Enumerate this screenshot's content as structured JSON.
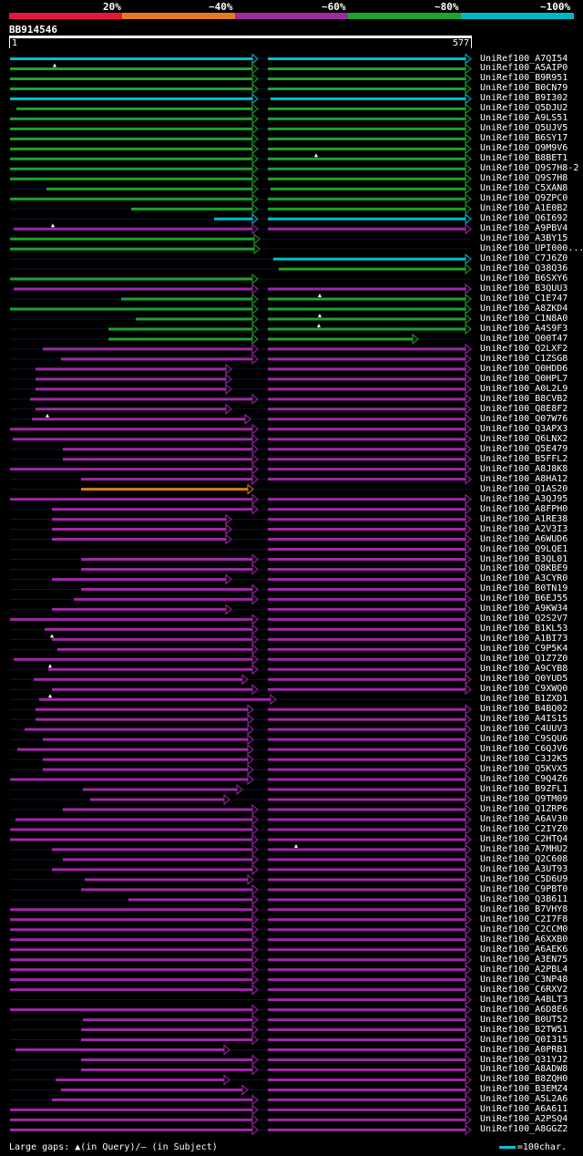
{
  "legend": {
    "labels": [
      "20%",
      "~40%",
      "~60%",
      "~80%",
      "~100%"
    ],
    "colors": [
      "#e8163a",
      "#e87a1e",
      "#9e2a9e",
      "#1fa32e",
      "#00b8c8"
    ]
  },
  "query": {
    "id": "BB914546",
    "start": "1",
    "end": "577"
  },
  "footer": {
    "gaps_text": "Large gaps: ▲(in Query)/– (in Subject)",
    "scale_text": "=100char."
  },
  "hits": [
    {
      "label": "UniRef100_A7QI54",
      "color": "cyan",
      "s1": 11,
      "e1": 283,
      "s2": 294,
      "e2": 517,
      "gap": 0
    },
    {
      "label": "UniRef100_A5AIP0",
      "color": "green",
      "s1": 11,
      "e1": 283,
      "s2": 294,
      "e2": 517,
      "gap": 60
    },
    {
      "label": "UniRef100_B9R951",
      "color": "green",
      "s1": 11,
      "e1": 283,
      "s2": 294,
      "e2": 517,
      "gap": 0
    },
    {
      "label": "UniRef100_B0CN79",
      "color": "green",
      "s1": 11,
      "e1": 283,
      "s2": 294,
      "e2": 517,
      "gap": 0
    },
    {
      "label": "UniRef100_B9I302",
      "color": "cyan",
      "s1": 11,
      "e1": 283,
      "s2": 297,
      "e2": 517,
      "gap": 0
    },
    {
      "label": "UniRef100_Q5DJU2",
      "color": "green",
      "s1": 18,
      "e1": 283,
      "s2": 294,
      "e2": 517,
      "gap": 0
    },
    {
      "label": "UniRef100_A9LS51",
      "color": "green",
      "s1": 11,
      "e1": 283,
      "s2": 294,
      "e2": 517,
      "gap": 0
    },
    {
      "label": "UniRef100_Q5UJV5",
      "color": "green",
      "s1": 11,
      "e1": 283,
      "s2": 294,
      "e2": 517,
      "gap": 0
    },
    {
      "label": "UniRef100_B6SY17",
      "color": "green",
      "s1": 11,
      "e1": 283,
      "s2": 294,
      "e2": 517,
      "gap": 0
    },
    {
      "label": "UniRef100_Q9M9V6",
      "color": "green",
      "s1": 11,
      "e1": 283,
      "s2": 294,
      "e2": 517,
      "gap": 0
    },
    {
      "label": "UniRef100_B8BET1",
      "color": "green",
      "s1": 11,
      "e1": 283,
      "s2": 294,
      "e2": 517,
      "gap": 347
    },
    {
      "label": "UniRef100_Q9S7H8-2",
      "color": "green",
      "s1": 11,
      "e1": 283,
      "s2": 294,
      "e2": 517,
      "gap": 0
    },
    {
      "label": "UniRef100_Q9S7H8",
      "color": "green",
      "s1": 11,
      "e1": 283,
      "s2": 294,
      "e2": 517,
      "gap": 0
    },
    {
      "label": "UniRef100_C5XAN8",
      "color": "green",
      "s1": 51,
      "e1": 283,
      "s2": 297,
      "e2": 517,
      "gap": 0
    },
    {
      "label": "UniRef100_Q9ZPC0",
      "color": "green",
      "s1": 11,
      "e1": 283,
      "s2": 294,
      "e2": 517,
      "gap": 0
    },
    {
      "label": "UniRef100_A1E0B2",
      "color": "green",
      "s1": 144,
      "e1": 283,
      "s2": 294,
      "e2": 517,
      "gap": 0
    },
    {
      "label": "UniRef100_Q6I692",
      "color": "cyan",
      "s1": 235,
      "e1": 283,
      "s2": 294,
      "e2": 517,
      "gap": 0
    },
    {
      "label": "UniRef100_A9PBV4",
      "color": "purple",
      "s1": 15,
      "e1": 283,
      "s2": 294,
      "e2": 517,
      "gap": 58
    },
    {
      "label": "UniRef100_A3BY15",
      "color": "green",
      "s1": 11,
      "e1": 285,
      "s2": 0,
      "e2": 0,
      "gap": 0
    },
    {
      "label": "UniRef100_UPI000...",
      "color": "green",
      "s1": 11,
      "e1": 285,
      "s2": 0,
      "e2": 0,
      "gap": 0
    },
    {
      "label": "UniRef100_C7J6Z0",
      "color": "cyan",
      "s1": 0,
      "e1": 0,
      "s2": 300,
      "e2": 517,
      "gap": 0
    },
    {
      "label": "UniRef100_Q38Q36",
      "color": "green",
      "s1": 0,
      "e1": 0,
      "s2": 306,
      "e2": 517,
      "gap": 0
    },
    {
      "label": "UniRef100_B6SXY6",
      "color": "green",
      "s1": 11,
      "e1": 283,
      "s2": 0,
      "e2": 0,
      "gap": 0
    },
    {
      "label": "UniRef100_B3QUU3",
      "color": "purple",
      "s1": 15,
      "e1": 283,
      "s2": 294,
      "e2": 517,
      "gap": 0
    },
    {
      "label": "UniRef100_C1E747",
      "color": "green",
      "s1": 133,
      "e1": 283,
      "s2": 294,
      "e2": 517,
      "gap": 351
    },
    {
      "label": "UniRef100_A8ZKD4",
      "color": "green",
      "s1": 11,
      "e1": 283,
      "s2": 294,
      "e2": 517,
      "gap": 0
    },
    {
      "label": "UniRef100_C1N8A0",
      "color": "green",
      "s1": 149,
      "e1": 283,
      "s2": 294,
      "e2": 517,
      "gap": 351
    },
    {
      "label": "UniRef100_A4S9F3",
      "color": "green",
      "s1": 119,
      "e1": 283,
      "s2": 294,
      "e2": 517,
      "gap": 350
    },
    {
      "label": "UniRef100_Q00T47",
      "color": "green",
      "s1": 119,
      "e1": 283,
      "s2": 294,
      "e2": 459,
      "gap": 0
    },
    {
      "label": "UniRef100_Q2LXF2",
      "color": "purple",
      "s1": 47,
      "e1": 283,
      "s2": 294,
      "e2": 517,
      "gap": 0
    },
    {
      "label": "UniRef100_C1ZSG8",
      "color": "purple",
      "s1": 67,
      "e1": 283,
      "s2": 294,
      "e2": 517,
      "gap": 0
    },
    {
      "label": "UniRef100_Q0HDD6",
      "color": "purple",
      "s1": 39,
      "e1": 254,
      "s2": 294,
      "e2": 517,
      "gap": 0
    },
    {
      "label": "UniRef100_Q0HPL7",
      "color": "purple",
      "s1": 39,
      "e1": 254,
      "s2": 294,
      "e2": 517,
      "gap": 0
    },
    {
      "label": "UniRef100_A0L2L9",
      "color": "purple",
      "s1": 39,
      "e1": 254,
      "s2": 294,
      "e2": 517,
      "gap": 0
    },
    {
      "label": "UniRef100_B8CVB2",
      "color": "purple",
      "s1": 33,
      "e1": 283,
      "s2": 294,
      "e2": 517,
      "gap": 0
    },
    {
      "label": "UniRef100_Q8E8F2",
      "color": "purple",
      "s1": 39,
      "e1": 254,
      "s2": 294,
      "e2": 517,
      "gap": 0
    },
    {
      "label": "UniRef100_Q07W76",
      "color": "purple",
      "s1": 35,
      "e1": 275,
      "s2": 294,
      "e2": 517,
      "gap": 52
    },
    {
      "label": "UniRef100_Q3APX3",
      "color": "purple",
      "s1": 11,
      "e1": 283,
      "s2": 294,
      "e2": 517,
      "gap": 0
    },
    {
      "label": "UniRef100_Q6LNX2",
      "color": "purple",
      "s1": 14,
      "e1": 283,
      "s2": 294,
      "e2": 517,
      "gap": 0
    },
    {
      "label": "UniRef100_Q5E479",
      "color": "purple",
      "s1": 69,
      "e1": 283,
      "s2": 294,
      "e2": 517,
      "gap": 0
    },
    {
      "label": "UniRef100_B5FFL2",
      "color": "purple",
      "s1": 69,
      "e1": 283,
      "s2": 294,
      "e2": 517,
      "gap": 0
    },
    {
      "label": "UniRef100_A8J8K8",
      "color": "purple",
      "s1": 11,
      "e1": 283,
      "s2": 294,
      "e2": 517,
      "gap": 0
    },
    {
      "label": "UniRef100_A8HA12",
      "color": "purple",
      "s1": 89,
      "e1": 283,
      "s2": 294,
      "e2": 517,
      "gap": 0
    },
    {
      "label": "UniRef100_Q1AS20",
      "color": "orange",
      "s1": 89,
      "e1": 278,
      "s2": 0,
      "e2": 0,
      "gap": 0
    },
    {
      "label": "UniRef100_A3QJ95",
      "color": "purple",
      "s1": 11,
      "e1": 283,
      "s2": 294,
      "e2": 517,
      "gap": 0
    },
    {
      "label": "UniRef100_A8FPH0",
      "color": "purple",
      "s1": 57,
      "e1": 283,
      "s2": 294,
      "e2": 517,
      "gap": 0
    },
    {
      "label": "UniRef100_A1RE38",
      "color": "purple",
      "s1": 57,
      "e1": 254,
      "s2": 294,
      "e2": 517,
      "gap": 0
    },
    {
      "label": "UniRef100_A2V3I3",
      "color": "purple",
      "s1": 57,
      "e1": 254,
      "s2": 294,
      "e2": 517,
      "gap": 0
    },
    {
      "label": "UniRef100_A6WUD6",
      "color": "purple",
      "s1": 57,
      "e1": 254,
      "s2": 294,
      "e2": 517,
      "gap": 0
    },
    {
      "label": "UniRef100_Q9LQE1",
      "color": "purple",
      "s1": 0,
      "e1": 0,
      "s2": 294,
      "e2": 517,
      "gap": 0
    },
    {
      "label": "UniRef100_B3QL01",
      "color": "purple",
      "s1": 89,
      "e1": 283,
      "s2": 294,
      "e2": 517,
      "gap": 0
    },
    {
      "label": "UniRef100_Q8KBE9",
      "color": "purple",
      "s1": 89,
      "e1": 283,
      "s2": 294,
      "e2": 517,
      "gap": 0
    },
    {
      "label": "UniRef100_A3CYR0",
      "color": "purple",
      "s1": 57,
      "e1": 254,
      "s2": 294,
      "e2": 517,
      "gap": 0
    },
    {
      "label": "UniRef100_B0TN19",
      "color": "purple",
      "s1": 89,
      "e1": 283,
      "s2": 294,
      "e2": 517,
      "gap": 0
    },
    {
      "label": "UniRef100_B6EJ55",
      "color": "purple",
      "s1": 81,
      "e1": 283,
      "s2": 294,
      "e2": 517,
      "gap": 0
    },
    {
      "label": "UniRef100_A9KW34",
      "color": "purple",
      "s1": 57,
      "e1": 254,
      "s2": 294,
      "e2": 517,
      "gap": 0
    },
    {
      "label": "UniRef100_Q2S2V7",
      "color": "purple",
      "s1": 11,
      "e1": 283,
      "s2": 294,
      "e2": 517,
      "gap": 0
    },
    {
      "label": "UniRef100_B1KL53",
      "color": "purple",
      "s1": 49,
      "e1": 283,
      "s2": 294,
      "e2": 517,
      "gap": 0
    },
    {
      "label": "UniRef100_A1BI73",
      "color": "purple",
      "s1": 57,
      "e1": 283,
      "s2": 294,
      "e2": 517,
      "gap": 57
    },
    {
      "label": "UniRef100_C9P5K4",
      "color": "purple",
      "s1": 63,
      "e1": 283,
      "s2": 294,
      "e2": 517,
      "gap": 0
    },
    {
      "label": "UniRef100_Q1Z7Z0",
      "color": "purple",
      "s1": 15,
      "e1": 283,
      "s2": 294,
      "e2": 517,
      "gap": 0
    },
    {
      "label": "UniRef100_A9CYB8",
      "color": "purple",
      "s1": 53,
      "e1": 283,
      "s2": 294,
      "e2": 517,
      "gap": 55
    },
    {
      "label": "UniRef100_Q0YUD5",
      "color": "purple",
      "s1": 37,
      "e1": 272,
      "s2": 294,
      "e2": 517,
      "gap": 0
    },
    {
      "label": "UniRef100_C9XWQ0",
      "color": "purple",
      "s1": 57,
      "e1": 283,
      "s2": 294,
      "e2": 517,
      "gap": 0
    },
    {
      "label": "UniRef100_B1ZXD1",
      "color": "purple",
      "s1": 43,
      "e1": 303,
      "s2": 0,
      "e2": 0,
      "gap": 55
    },
    {
      "label": "UniRef100_B4BQ02",
      "color": "purple",
      "s1": 39,
      "e1": 278,
      "s2": 294,
      "e2": 517,
      "gap": 0
    },
    {
      "label": "UniRef100_A4IS15",
      "color": "purple",
      "s1": 39,
      "e1": 278,
      "s2": 294,
      "e2": 517,
      "gap": 0
    },
    {
      "label": "UniRef100_C4UUV3",
      "color": "purple",
      "s1": 27,
      "e1": 278,
      "s2": 294,
      "e2": 517,
      "gap": 0
    },
    {
      "label": "UniRef100_C9SQU6",
      "color": "purple",
      "s1": 47,
      "e1": 278,
      "s2": 294,
      "e2": 517,
      "gap": 0
    },
    {
      "label": "UniRef100_C6QJV6",
      "color": "purple",
      "s1": 19,
      "e1": 278,
      "s2": 294,
      "e2": 517,
      "gap": 0
    },
    {
      "label": "UniRef100_C3J2K5",
      "color": "purple",
      "s1": 47,
      "e1": 278,
      "s2": 294,
      "e2": 517,
      "gap": 0
    },
    {
      "label": "UniRef100_Q5KVX5",
      "color": "purple",
      "s1": 47,
      "e1": 278,
      "s2": 294,
      "e2": 517,
      "gap": 0
    },
    {
      "label": "UniRef100_C9Q4Z6",
      "color": "purple",
      "s1": 11,
      "e1": 278,
      "s2": 294,
      "e2": 517,
      "gap": 0
    },
    {
      "label": "UniRef100_B9ZFL1",
      "color": "purple",
      "s1": 91,
      "e1": 266,
      "s2": 294,
      "e2": 517,
      "gap": 0
    },
    {
      "label": "UniRef100_Q9TM09",
      "color": "purple",
      "s1": 99,
      "e1": 252,
      "s2": 294,
      "e2": 517,
      "gap": 0
    },
    {
      "label": "UniRef100_Q1ZRP6",
      "color": "purple",
      "s1": 69,
      "e1": 283,
      "s2": 294,
      "e2": 517,
      "gap": 0
    },
    {
      "label": "UniRef100_A6AV30",
      "color": "purple",
      "s1": 17,
      "e1": 283,
      "s2": 294,
      "e2": 517,
      "gap": 0
    },
    {
      "label": "UniRef100_C2IYZ0",
      "color": "purple",
      "s1": 11,
      "e1": 283,
      "s2": 294,
      "e2": 517,
      "gap": 0
    },
    {
      "label": "UniRef100_C2HTQ4",
      "color": "purple",
      "s1": 11,
      "e1": 283,
      "s2": 294,
      "e2": 517,
      "gap": 0
    },
    {
      "label": "UniRef100_A7MHU2",
      "color": "purple",
      "s1": 57,
      "e1": 283,
      "s2": 294,
      "e2": 517,
      "gap": 325
    },
    {
      "label": "UniRef100_Q2C608",
      "color": "purple",
      "s1": 69,
      "e1": 283,
      "s2": 294,
      "e2": 517,
      "gap": 0
    },
    {
      "label": "UniRef100_A3UT93",
      "color": "purple",
      "s1": 57,
      "e1": 283,
      "s2": 294,
      "e2": 517,
      "gap": 0
    },
    {
      "label": "UniRef100_C5D6U9",
      "color": "purple",
      "s1": 93,
      "e1": 278,
      "s2": 294,
      "e2": 517,
      "gap": 0
    },
    {
      "label": "UniRef100_C9PBT0",
      "color": "purple",
      "s1": 89,
      "e1": 283,
      "s2": 294,
      "e2": 517,
      "gap": 0
    },
    {
      "label": "UniRef100_Q3B611",
      "color": "purple",
      "s1": 141,
      "e1": 283,
      "s2": 294,
      "e2": 517,
      "gap": 0
    },
    {
      "label": "UniRef100_B7VHY8",
      "color": "purple",
      "s1": 11,
      "e1": 283,
      "s2": 294,
      "e2": 517,
      "gap": 0
    },
    {
      "label": "UniRef100_C2I7F8",
      "color": "purple",
      "s1": 11,
      "e1": 283,
      "s2": 294,
      "e2": 517,
      "gap": 0
    },
    {
      "label": "UniRef100_C2CCM0",
      "color": "purple",
      "s1": 11,
      "e1": 283,
      "s2": 294,
      "e2": 517,
      "gap": 0
    },
    {
      "label": "UniRef100_A6XXB0",
      "color": "purple",
      "s1": 11,
      "e1": 283,
      "s2": 294,
      "e2": 517,
      "gap": 0
    },
    {
      "label": "UniRef100_A6AEK6",
      "color": "purple",
      "s1": 11,
      "e1": 283,
      "s2": 294,
      "e2": 517,
      "gap": 0
    },
    {
      "label": "UniRef100_A3EN75",
      "color": "purple",
      "s1": 11,
      "e1": 283,
      "s2": 294,
      "e2": 517,
      "gap": 0
    },
    {
      "label": "UniRef100_A2PBL4",
      "color": "purple",
      "s1": 11,
      "e1": 283,
      "s2": 294,
      "e2": 517,
      "gap": 0
    },
    {
      "label": "UniRef100_C3NP48",
      "color": "purple",
      "s1": 11,
      "e1": 283,
      "s2": 294,
      "e2": 517,
      "gap": 0
    },
    {
      "label": "UniRef100_C6RXV2",
      "color": "purple",
      "s1": 11,
      "e1": 283,
      "s2": 294,
      "e2": 517,
      "gap": 0
    },
    {
      "label": "UniRef100_A4BLT3",
      "color": "purple",
      "s1": 0,
      "e1": 0,
      "s2": 294,
      "e2": 517,
      "gap": 0
    },
    {
      "label": "UniRef100_A6D8E6",
      "color": "purple",
      "s1": 11,
      "e1": 283,
      "s2": 294,
      "e2": 517,
      "gap": 0
    },
    {
      "label": "UniRef100_B0UT52",
      "color": "purple",
      "s1": 91,
      "e1": 283,
      "s2": 294,
      "e2": 517,
      "gap": 0
    },
    {
      "label": "UniRef100_B2TW51",
      "color": "purple",
      "s1": 89,
      "e1": 283,
      "s2": 294,
      "e2": 517,
      "gap": 0
    },
    {
      "label": "UniRef100_Q0I315",
      "color": "purple",
      "s1": 89,
      "e1": 283,
      "s2": 294,
      "e2": 517,
      "gap": 0
    },
    {
      "label": "UniRef100_A0PRB1",
      "color": "purple",
      "s1": 17,
      "e1": 252,
      "s2": 294,
      "e2": 517,
      "gap": 0
    },
    {
      "label": "UniRef100_Q31YJ2",
      "color": "purple",
      "s1": 89,
      "e1": 283,
      "s2": 294,
      "e2": 517,
      "gap": 0
    },
    {
      "label": "UniRef100_A8ADW8",
      "color": "purple",
      "s1": 89,
      "e1": 283,
      "s2": 294,
      "e2": 517,
      "gap": 0
    },
    {
      "label": "UniRef100_B8ZQH0",
      "color": "purple",
      "s1": 61,
      "e1": 252,
      "s2": 294,
      "e2": 517,
      "gap": 0
    },
    {
      "label": "UniRef100_B3EMZ4",
      "color": "purple",
      "s1": 67,
      "e1": 272,
      "s2": 294,
      "e2": 517,
      "gap": 0
    },
    {
      "label": "UniRef100_A5L2A6",
      "color": "purple",
      "s1": 57,
      "e1": 283,
      "s2": 294,
      "e2": 517,
      "gap": 0
    },
    {
      "label": "UniRef100_A6A611",
      "color": "purple",
      "s1": 11,
      "e1": 283,
      "s2": 294,
      "e2": 517,
      "gap": 0
    },
    {
      "label": "UniRef100_A2PSQ4",
      "color": "purple",
      "s1": 11,
      "e1": 283,
      "s2": 294,
      "e2": 517,
      "gap": 0
    },
    {
      "label": "UniRef100_A8GGZ2",
      "color": "purple",
      "s1": 11,
      "e1": 283,
      "s2": 294,
      "e2": 517,
      "gap": 0
    }
  ]
}
